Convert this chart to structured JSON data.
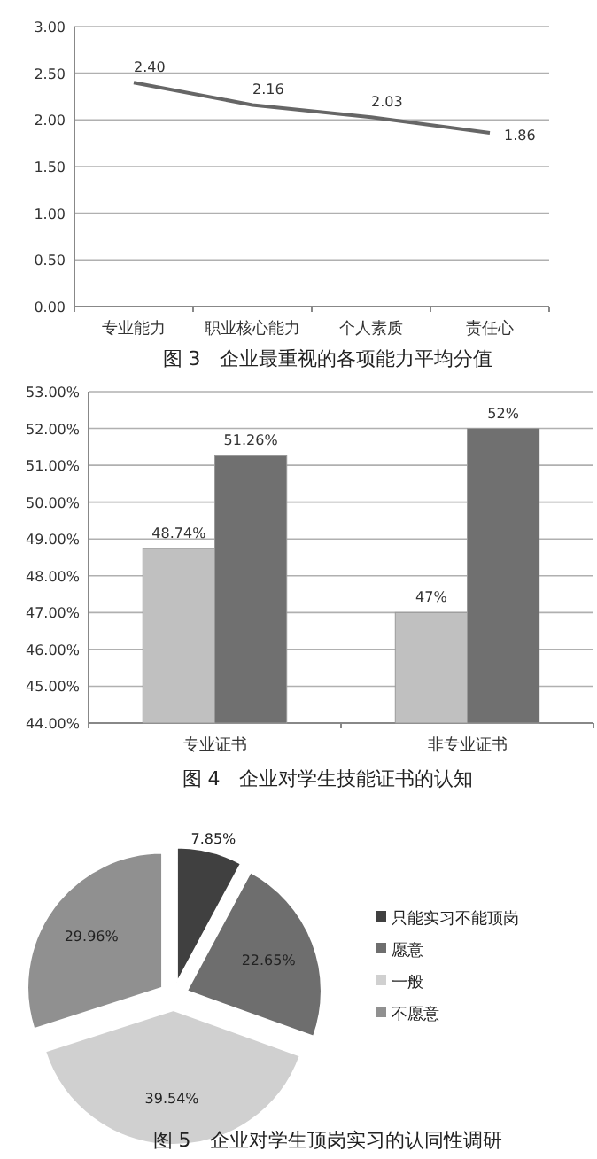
{
  "chart_data": [
    {
      "type": "line",
      "title": "图 3　企业最重视的各项能力平均分值",
      "categories": [
        "专业能力",
        "职业核心能力",
        "个人素质",
        "责任心"
      ],
      "values": [
        2.4,
        2.16,
        2.03,
        1.86
      ],
      "value_labels": [
        "2.40",
        "2.16",
        "2.03",
        "1.86"
      ],
      "color": "#666666",
      "ylim": [
        0,
        3
      ],
      "yticks": [
        {
          "value": 0,
          "label": "0.00"
        },
        {
          "value": 0.5,
          "label": "0.50"
        },
        {
          "value": 1,
          "label": "1.00"
        },
        {
          "value": 1.5,
          "label": "1.50"
        },
        {
          "value": 2,
          "label": "2.00"
        },
        {
          "value": 2.5,
          "label": "2.50"
        },
        {
          "value": 3,
          "label": "3.00"
        }
      ],
      "grid": "y",
      "marker": "none",
      "line_style": "solid"
    },
    {
      "type": "bar",
      "title": "图 4　企业对学生技能证书的认知",
      "categories": [
        "专业证书",
        "非专业证书"
      ],
      "series": [
        {
          "color": "#c0c0c0",
          "values": [
            48.74,
            47
          ],
          "value_labels": [
            "48.74%",
            "47%"
          ]
        },
        {
          "color": "#707070",
          "values": [
            51.26,
            52
          ],
          "value_labels": [
            "51.26%",
            "52%"
          ]
        }
      ],
      "ylim": [
        44,
        53
      ],
      "yticks": [
        {
          "value": 44,
          "label": "44.00%"
        },
        {
          "value": 45,
          "label": "45.00%"
        },
        {
          "value": 46,
          "label": "46.00%"
        },
        {
          "value": 47,
          "label": "47.00%"
        },
        {
          "value": 48,
          "label": "48.00%"
        },
        {
          "value": 49,
          "label": "49.00%"
        },
        {
          "value": 50,
          "label": "50.00%"
        },
        {
          "value": 51,
          "label": "51.00%"
        },
        {
          "value": 52,
          "label": "52.00%"
        },
        {
          "value": 53,
          "label": "53.00%"
        }
      ],
      "grid": "y"
    },
    {
      "type": "pie",
      "title": "图 5　企业对学生顶岗实习的认同性调研",
      "categories": [
        "只能实习不能顶岗",
        "愿意",
        "一般",
        "不愿意"
      ],
      "values": [
        7.85,
        22.65,
        39.54,
        29.96
      ],
      "value_labels": [
        "7.85%",
        "22.65%",
        "39.54%",
        "29.96%"
      ],
      "colors": [
        "#404040",
        "#6e6e6e",
        "#d0d0d0",
        "#909090"
      ],
      "legend": "right"
    }
  ]
}
